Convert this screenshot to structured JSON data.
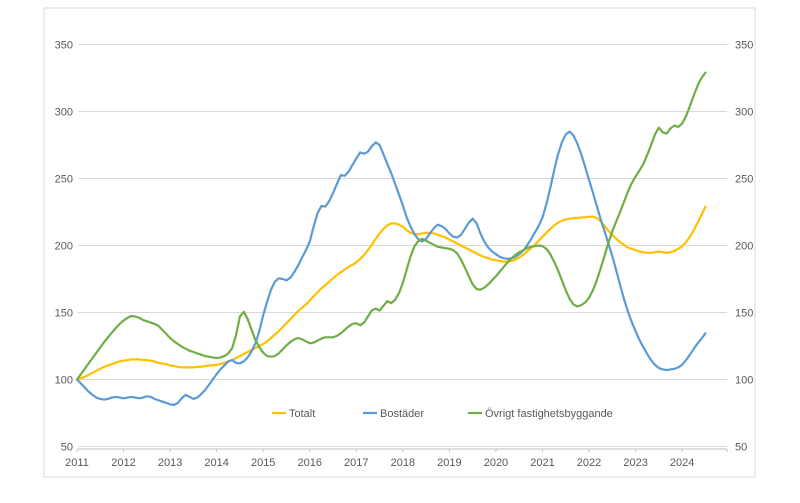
{
  "chart_data": {
    "type": "line",
    "title": "",
    "x_start": "2011-01",
    "x_frequency": "monthly",
    "x_tick_labels": [
      "2011",
      "2012",
      "2013",
      "2014",
      "2015",
      "2016",
      "2017",
      "2018",
      "2019",
      "2020",
      "2021",
      "2022",
      "2023",
      "2024"
    ],
    "y_ticks": [
      50,
      100,
      150,
      200,
      250,
      300,
      350
    ],
    "y_range": [
      50,
      350
    ],
    "grid": "horizontal",
    "y_axis_labels": "both-sides",
    "legend_position": "bottom-inside",
    "colors": {
      "grid": "#d9d9d9",
      "border": "#d9d9d9",
      "axis": "#bfbfbf",
      "text": "#595959",
      "background": "#ffffff"
    },
    "series": [
      {
        "name": "Totalt",
        "color": "#FFC000",
        "values": [
          100,
          101,
          102,
          103.5,
          105,
          106.5,
          108,
          109.5,
          110.5,
          111.5,
          112.5,
          113.5,
          114,
          114.5,
          115,
          115,
          115,
          114.5,
          114.5,
          114,
          113.5,
          112.5,
          112,
          111.5,
          110.5,
          110,
          109.5,
          109,
          109,
          109,
          109,
          109.5,
          109.5,
          110,
          110.5,
          110.5,
          111,
          111.5,
          112.5,
          113.5,
          114.5,
          116,
          117.5,
          119,
          120.5,
          122,
          123.5,
          125,
          126.5,
          128.5,
          131,
          133.5,
          136,
          139,
          142,
          145,
          148,
          151,
          153.5,
          156,
          159,
          162,
          165,
          168,
          170.5,
          173,
          175.5,
          178,
          180,
          182,
          184,
          185.5,
          187.5,
          190,
          193,
          196.5,
          200.5,
          205,
          209,
          212.5,
          215,
          216.5,
          216.5,
          215.5,
          214,
          211.5,
          209.5,
          208.5,
          208.5,
          209,
          209.5,
          209.5,
          209,
          208,
          207,
          206,
          204.5,
          203,
          201.5,
          200,
          198.5,
          197,
          195.5,
          194,
          192.5,
          191.5,
          190.5,
          189.5,
          189,
          188.5,
          188,
          188,
          188.5,
          189.5,
          191,
          193,
          195.5,
          198,
          200.5,
          203.5,
          206.5,
          209.5,
          212.5,
          215,
          217,
          218.5,
          219.5,
          220,
          220.5,
          220.5,
          221,
          221,
          221.5,
          221.5,
          220.5,
          218,
          214.5,
          211,
          208,
          205,
          202.5,
          200.5,
          198.5,
          197.5,
          196.5,
          195.5,
          195,
          194.5,
          194.5,
          195,
          195.5,
          195,
          194.5,
          195,
          196,
          197.5,
          199.5,
          202.5,
          206.5,
          211.5,
          217,
          223,
          229
        ]
      },
      {
        "name": "Bostäder",
        "color": "#5B9BD5",
        "values": [
          100,
          97,
          94,
          91,
          88.5,
          86.5,
          85.5,
          85,
          85.5,
          86.5,
          87,
          86.5,
          86,
          86.5,
          87,
          86.5,
          86,
          86.5,
          87.5,
          87,
          85.5,
          84.5,
          83.5,
          82.5,
          81.5,
          81,
          82.5,
          86,
          88.5,
          87,
          85.5,
          86.5,
          89,
          92,
          96,
          100,
          104,
          107.5,
          110.5,
          113.5,
          114.5,
          112.5,
          112,
          113.5,
          116.5,
          121,
          127,
          136,
          148,
          158,
          167,
          173,
          175.5,
          175,
          174,
          176,
          180,
          185,
          191,
          196.5,
          203,
          214,
          224,
          229.5,
          229,
          233,
          239,
          246,
          252.5,
          252,
          255,
          260,
          265,
          269.5,
          268.5,
          270,
          274,
          277,
          275,
          268,
          261,
          254,
          246,
          238,
          230,
          221,
          214,
          208.5,
          204.5,
          203,
          205,
          209,
          213,
          215.5,
          214.5,
          212.5,
          209,
          206.5,
          206,
          208,
          212.5,
          217,
          220,
          216.5,
          209,
          203,
          198.5,
          195.5,
          193.5,
          191.5,
          190.5,
          190,
          190.5,
          191.5,
          193.5,
          196,
          200,
          204.5,
          209.5,
          214.5,
          221,
          231,
          243,
          256,
          268,
          277,
          283,
          285,
          282,
          276,
          268,
          258.5,
          249,
          239.5,
          229.5,
          219.5,
          210.5,
          201.5,
          192,
          181.5,
          170.5,
          160,
          151,
          143,
          136,
          129.5,
          124,
          119,
          114.5,
          111,
          108.5,
          107.5,
          107,
          107.5,
          108,
          109,
          111,
          114.5,
          118.5,
          123,
          127,
          130.5,
          134.5
        ]
      },
      {
        "name": "Övrigt fastighetsbyggande",
        "color": "#70AD47",
        "values": [
          100,
          104,
          108,
          112,
          116,
          120,
          124,
          128,
          131.5,
          135,
          138.5,
          141.5,
          144,
          146,
          147.5,
          147,
          146,
          144.5,
          143.5,
          142.5,
          141.5,
          140,
          137,
          134,
          131,
          128.5,
          126.5,
          124.5,
          123,
          121.5,
          120.5,
          119.5,
          118.5,
          117.5,
          117,
          116.5,
          116,
          116.5,
          117.5,
          119.5,
          123.5,
          133,
          147,
          150.5,
          145,
          137,
          129.5,
          124,
          120,
          117.5,
          117,
          117.5,
          119.5,
          122.5,
          125.5,
          128,
          130,
          131,
          130,
          128.5,
          127,
          127.5,
          129,
          130.5,
          131.5,
          131.5,
          131.5,
          132.5,
          134.5,
          137,
          139.5,
          141.5,
          142,
          140.5,
          142.5,
          147,
          151.5,
          153,
          151.5,
          155,
          158.5,
          157,
          159.5,
          164.5,
          172,
          182,
          192,
          199.5,
          203.5,
          205,
          203.5,
          202,
          200.5,
          199,
          198.5,
          198,
          197.5,
          196.5,
          194,
          189.5,
          183.5,
          177,
          171,
          167.5,
          167,
          168.5,
          171,
          174,
          177,
          180.5,
          184,
          187.5,
          190.5,
          193,
          195,
          196.5,
          198,
          199,
          199.5,
          200,
          199.5,
          197.5,
          193.5,
          188,
          181.5,
          174,
          166.5,
          160,
          156,
          154.5,
          155.5,
          157.5,
          161,
          166.5,
          174,
          183,
          192.5,
          202,
          210.5,
          218,
          225,
          232.5,
          240,
          246.5,
          251.5,
          256,
          261,
          267.5,
          275,
          283,
          288,
          284.5,
          283.5,
          287.5,
          289.5,
          288.5,
          291,
          296.5,
          304,
          312,
          319.5,
          325,
          329
        ]
      }
    ]
  }
}
